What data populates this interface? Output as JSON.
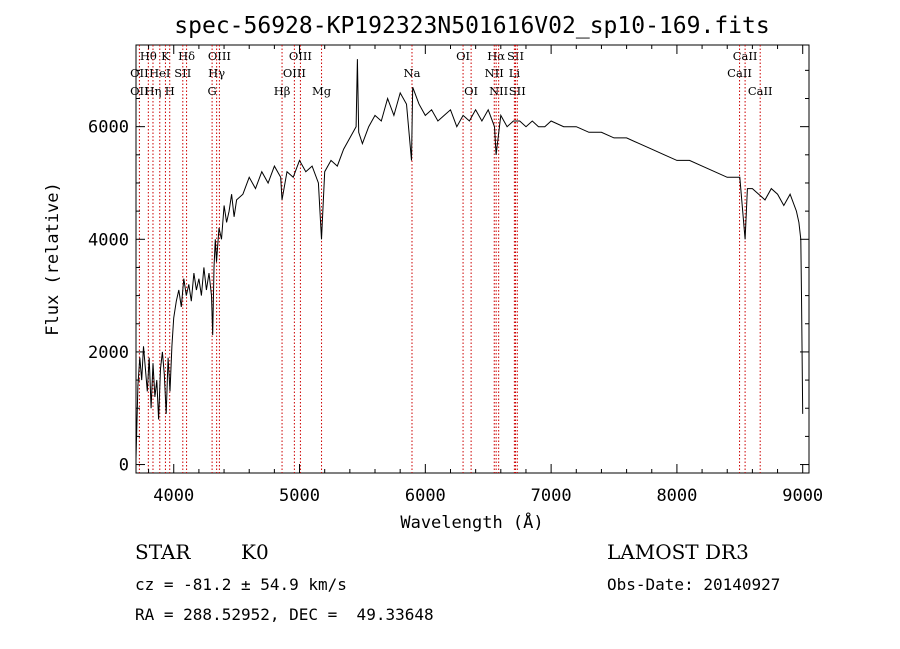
{
  "chart_data": {
    "type": "line",
    "title": "spec-56928-KP192323N501616V02_sp10-169.fits",
    "xlabel": "Wavelength (Å)",
    "ylabel": "Flux (relative)",
    "xlim": [
      3700,
      9050
    ],
    "ylim": [
      -150,
      7450
    ],
    "x_ticks": [
      4000,
      5000,
      6000,
      7000,
      8000,
      9000
    ],
    "y_ticks": [
      0,
      2000,
      4000,
      6000
    ],
    "grid": false,
    "line_color": "#000000",
    "marker_color": "#cc0000",
    "spectrum": {
      "wavelength": [
        3700,
        3715,
        3730,
        3745,
        3760,
        3775,
        3790,
        3805,
        3820,
        3835,
        3850,
        3865,
        3880,
        3895,
        3910,
        3925,
        3940,
        3955,
        3970,
        3985,
        4000,
        4020,
        4040,
        4060,
        4080,
        4100,
        4120,
        4140,
        4160,
        4180,
        4200,
        4220,
        4240,
        4260,
        4280,
        4300,
        4310,
        4320,
        4330,
        4340,
        4360,
        4380,
        4400,
        4420,
        4440,
        4460,
        4480,
        4500,
        4550,
        4600,
        4650,
        4700,
        4750,
        4800,
        4850,
        4861,
        4900,
        4950,
        5000,
        5050,
        5100,
        5150,
        5175,
        5200,
        5250,
        5300,
        5350,
        5400,
        5450,
        5460,
        5470,
        5500,
        5550,
        5600,
        5650,
        5700,
        5750,
        5800,
        5850,
        5890,
        5900,
        5950,
        6000,
        6050,
        6100,
        6150,
        6200,
        6250,
        6300,
        6350,
        6400,
        6450,
        6500,
        6550,
        6563,
        6600,
        6650,
        6700,
        6750,
        6800,
        6850,
        6900,
        6950,
        7000,
        7100,
        7200,
        7300,
        7400,
        7500,
        7600,
        7700,
        7800,
        7900,
        8000,
        8100,
        8200,
        8300,
        8400,
        8450,
        8500,
        8542,
        8560,
        8600,
        8650,
        8700,
        8750,
        8800,
        8850,
        8900,
        8950,
        8970,
        8985,
        8990,
        9000
      ],
      "flux": [
        100,
        1400,
        1900,
        1500,
        2100,
        1700,
        1300,
        1900,
        1000,
        1800,
        1200,
        1500,
        800,
        1700,
        2000,
        1600,
        900,
        1900,
        1300,
        2100,
        2600,
        2900,
        3100,
        2800,
        3300,
        3000,
        3200,
        2900,
        3400,
        3100,
        3300,
        3000,
        3500,
        3100,
        3400,
        3000,
        2300,
        3500,
        4000,
        3600,
        4200,
        4000,
        4600,
        4300,
        4500,
        4800,
        4400,
        4700,
        4800,
        5100,
        4900,
        5200,
        5000,
        5300,
        5100,
        4700,
        5200,
        5100,
        5400,
        5200,
        5300,
        5000,
        4000,
        5200,
        5400,
        5300,
        5600,
        5800,
        6000,
        7200,
        5900,
        5700,
        6000,
        6200,
        6100,
        6500,
        6200,
        6600,
        6400,
        5400,
        6700,
        6400,
        6200,
        6300,
        6100,
        6200,
        6300,
        6000,
        6200,
        6100,
        6300,
        6100,
        6300,
        6000,
        5500,
        6200,
        6000,
        6100,
        6100,
        6000,
        6100,
        6000,
        6000,
        6100,
        6000,
        6000,
        5900,
        5900,
        5800,
        5800,
        5700,
        5600,
        5500,
        5400,
        5400,
        5300,
        5200,
        5100,
        5100,
        5100,
        4000,
        4900,
        4900,
        4800,
        4700,
        4900,
        4800,
        4600,
        4800,
        4500,
        4300,
        4000,
        3000,
        900
      ]
    },
    "lines": [
      {
        "label": "Hθ",
        "wavelength": 3798,
        "row": 0
      },
      {
        "label": "OII",
        "wavelength": 3727,
        "row": 1
      },
      {
        "label": "OII",
        "wavelength": 3727,
        "row": 2
      },
      {
        "label": "K",
        "wavelength": 3934,
        "row": 0
      },
      {
        "label": "HeI",
        "wavelength": 3889,
        "row": 1
      },
      {
        "label": "Hη",
        "wavelength": 3835,
        "row": 2
      },
      {
        "label": "H",
        "wavelength": 3968,
        "row": 2
      },
      {
        "label": "Hδ",
        "wavelength": 4102,
        "row": 0
      },
      {
        "label": "SII",
        "wavelength": 4072,
        "row": 1
      },
      {
        "label": "OIII",
        "wavelength": 4363,
        "row": 0
      },
      {
        "label": "Hγ",
        "wavelength": 4341,
        "row": 1
      },
      {
        "label": "G",
        "wavelength": 4305,
        "row": 2
      },
      {
        "label": "OIII",
        "wavelength": 5007,
        "row": 0
      },
      {
        "label": "OIII",
        "wavelength": 4959,
        "row": 1
      },
      {
        "label": "Hβ",
        "wavelength": 4861,
        "row": 2
      },
      {
        "label": "Mg",
        "wavelength": 5175,
        "row": 2
      },
      {
        "label": "Na",
        "wavelength": 5894,
        "row": 1
      },
      {
        "label": "OI",
        "wavelength": 6300,
        "row": 0
      },
      {
        "label": "OI",
        "wavelength": 6364,
        "row": 2
      },
      {
        "label": "Hα",
        "wavelength": 6563,
        "row": 0
      },
      {
        "label": "SII",
        "wavelength": 6717,
        "row": 0
      },
      {
        "label": "NII",
        "wavelength": 6548,
        "row": 1
      },
      {
        "label": "Li",
        "wavelength": 6708,
        "row": 1
      },
      {
        "label": "NII",
        "wavelength": 6583,
        "row": 2
      },
      {
        "label": "SII",
        "wavelength": 6731,
        "row": 2
      },
      {
        "label": "CaII",
        "wavelength": 8542,
        "row": 0
      },
      {
        "label": "CaII",
        "wavelength": 8498,
        "row": 1
      },
      {
        "label": "CaII",
        "wavelength": 8662,
        "row": 2
      }
    ]
  },
  "info": {
    "object_class": "STAR",
    "subclass": "K0",
    "survey": "LAMOST DR3",
    "redshift_text": "cz = -81.2 ± 54.9 km/s",
    "obs_date_text": "Obs-Date: 20140927",
    "coords_text": "RA = 288.52952, DEC =  49.33648"
  }
}
